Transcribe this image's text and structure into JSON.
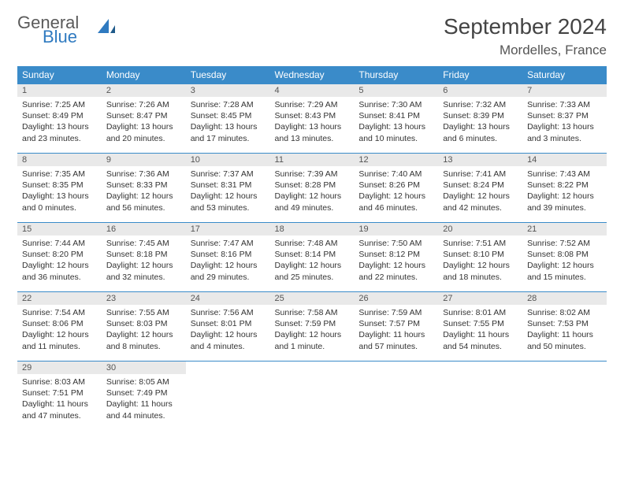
{
  "brand": {
    "line1": "General",
    "line2": "Blue"
  },
  "title": "September 2024",
  "location": "Mordelles, France",
  "colors": {
    "header_bg": "#3a8bc9",
    "header_text": "#ffffff",
    "daynum_bg": "#e9e9e9",
    "border": "#3a8bc9",
    "logo_blue": "#2f7ac0"
  },
  "weekdays": [
    "Sunday",
    "Monday",
    "Tuesday",
    "Wednesday",
    "Thursday",
    "Friday",
    "Saturday"
  ],
  "days": [
    {
      "n": "1",
      "sr": "Sunrise: 7:25 AM",
      "ss": "Sunset: 8:49 PM",
      "d1": "Daylight: 13 hours",
      "d2": "and 23 minutes."
    },
    {
      "n": "2",
      "sr": "Sunrise: 7:26 AM",
      "ss": "Sunset: 8:47 PM",
      "d1": "Daylight: 13 hours",
      "d2": "and 20 minutes."
    },
    {
      "n": "3",
      "sr": "Sunrise: 7:28 AM",
      "ss": "Sunset: 8:45 PM",
      "d1": "Daylight: 13 hours",
      "d2": "and 17 minutes."
    },
    {
      "n": "4",
      "sr": "Sunrise: 7:29 AM",
      "ss": "Sunset: 8:43 PM",
      "d1": "Daylight: 13 hours",
      "d2": "and 13 minutes."
    },
    {
      "n": "5",
      "sr": "Sunrise: 7:30 AM",
      "ss": "Sunset: 8:41 PM",
      "d1": "Daylight: 13 hours",
      "d2": "and 10 minutes."
    },
    {
      "n": "6",
      "sr": "Sunrise: 7:32 AM",
      "ss": "Sunset: 8:39 PM",
      "d1": "Daylight: 13 hours",
      "d2": "and 6 minutes."
    },
    {
      "n": "7",
      "sr": "Sunrise: 7:33 AM",
      "ss": "Sunset: 8:37 PM",
      "d1": "Daylight: 13 hours",
      "d2": "and 3 minutes."
    },
    {
      "n": "8",
      "sr": "Sunrise: 7:35 AM",
      "ss": "Sunset: 8:35 PM",
      "d1": "Daylight: 13 hours",
      "d2": "and 0 minutes."
    },
    {
      "n": "9",
      "sr": "Sunrise: 7:36 AM",
      "ss": "Sunset: 8:33 PM",
      "d1": "Daylight: 12 hours",
      "d2": "and 56 minutes."
    },
    {
      "n": "10",
      "sr": "Sunrise: 7:37 AM",
      "ss": "Sunset: 8:31 PM",
      "d1": "Daylight: 12 hours",
      "d2": "and 53 minutes."
    },
    {
      "n": "11",
      "sr": "Sunrise: 7:39 AM",
      "ss": "Sunset: 8:28 PM",
      "d1": "Daylight: 12 hours",
      "d2": "and 49 minutes."
    },
    {
      "n": "12",
      "sr": "Sunrise: 7:40 AM",
      "ss": "Sunset: 8:26 PM",
      "d1": "Daylight: 12 hours",
      "d2": "and 46 minutes."
    },
    {
      "n": "13",
      "sr": "Sunrise: 7:41 AM",
      "ss": "Sunset: 8:24 PM",
      "d1": "Daylight: 12 hours",
      "d2": "and 42 minutes."
    },
    {
      "n": "14",
      "sr": "Sunrise: 7:43 AM",
      "ss": "Sunset: 8:22 PM",
      "d1": "Daylight: 12 hours",
      "d2": "and 39 minutes."
    },
    {
      "n": "15",
      "sr": "Sunrise: 7:44 AM",
      "ss": "Sunset: 8:20 PM",
      "d1": "Daylight: 12 hours",
      "d2": "and 36 minutes."
    },
    {
      "n": "16",
      "sr": "Sunrise: 7:45 AM",
      "ss": "Sunset: 8:18 PM",
      "d1": "Daylight: 12 hours",
      "d2": "and 32 minutes."
    },
    {
      "n": "17",
      "sr": "Sunrise: 7:47 AM",
      "ss": "Sunset: 8:16 PM",
      "d1": "Daylight: 12 hours",
      "d2": "and 29 minutes."
    },
    {
      "n": "18",
      "sr": "Sunrise: 7:48 AM",
      "ss": "Sunset: 8:14 PM",
      "d1": "Daylight: 12 hours",
      "d2": "and 25 minutes."
    },
    {
      "n": "19",
      "sr": "Sunrise: 7:50 AM",
      "ss": "Sunset: 8:12 PM",
      "d1": "Daylight: 12 hours",
      "d2": "and 22 minutes."
    },
    {
      "n": "20",
      "sr": "Sunrise: 7:51 AM",
      "ss": "Sunset: 8:10 PM",
      "d1": "Daylight: 12 hours",
      "d2": "and 18 minutes."
    },
    {
      "n": "21",
      "sr": "Sunrise: 7:52 AM",
      "ss": "Sunset: 8:08 PM",
      "d1": "Daylight: 12 hours",
      "d2": "and 15 minutes."
    },
    {
      "n": "22",
      "sr": "Sunrise: 7:54 AM",
      "ss": "Sunset: 8:06 PM",
      "d1": "Daylight: 12 hours",
      "d2": "and 11 minutes."
    },
    {
      "n": "23",
      "sr": "Sunrise: 7:55 AM",
      "ss": "Sunset: 8:03 PM",
      "d1": "Daylight: 12 hours",
      "d2": "and 8 minutes."
    },
    {
      "n": "24",
      "sr": "Sunrise: 7:56 AM",
      "ss": "Sunset: 8:01 PM",
      "d1": "Daylight: 12 hours",
      "d2": "and 4 minutes."
    },
    {
      "n": "25",
      "sr": "Sunrise: 7:58 AM",
      "ss": "Sunset: 7:59 PM",
      "d1": "Daylight: 12 hours",
      "d2": "and 1 minute."
    },
    {
      "n": "26",
      "sr": "Sunrise: 7:59 AM",
      "ss": "Sunset: 7:57 PM",
      "d1": "Daylight: 11 hours",
      "d2": "and 57 minutes."
    },
    {
      "n": "27",
      "sr": "Sunrise: 8:01 AM",
      "ss": "Sunset: 7:55 PM",
      "d1": "Daylight: 11 hours",
      "d2": "and 54 minutes."
    },
    {
      "n": "28",
      "sr": "Sunrise: 8:02 AM",
      "ss": "Sunset: 7:53 PM",
      "d1": "Daylight: 11 hours",
      "d2": "and 50 minutes."
    },
    {
      "n": "29",
      "sr": "Sunrise: 8:03 AM",
      "ss": "Sunset: 7:51 PM",
      "d1": "Daylight: 11 hours",
      "d2": "and 47 minutes."
    },
    {
      "n": "30",
      "sr": "Sunrise: 8:05 AM",
      "ss": "Sunset: 7:49 PM",
      "d1": "Daylight: 11 hours",
      "d2": "and 44 minutes."
    }
  ]
}
